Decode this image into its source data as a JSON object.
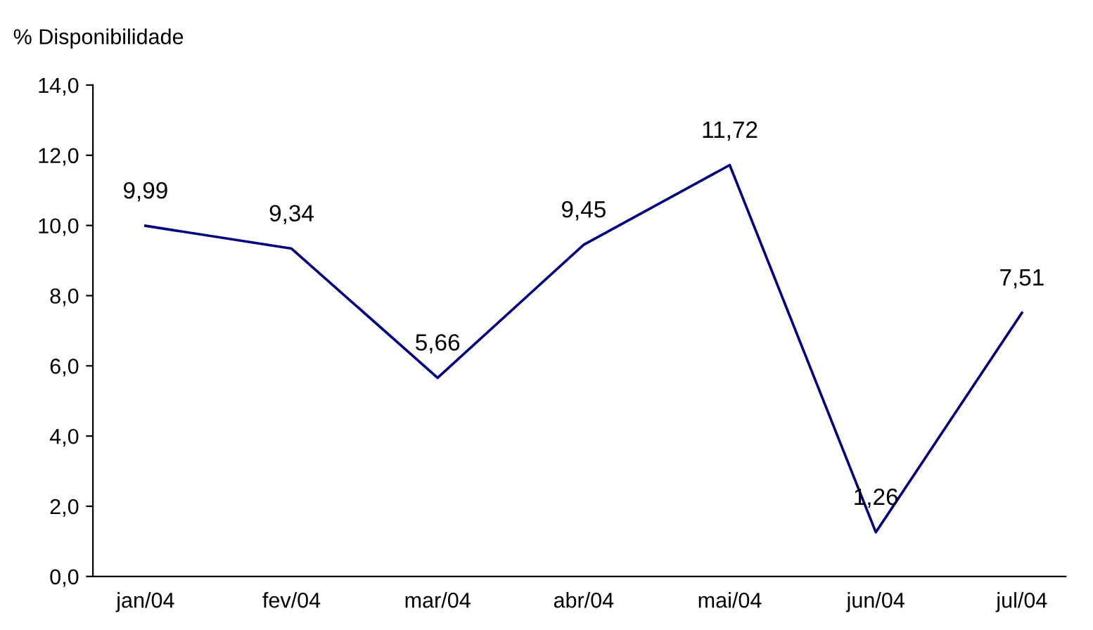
{
  "chart_data": {
    "type": "line",
    "ylabel": "% Disponibilidade",
    "categories": [
      "jan/04",
      "fev/04",
      "mar/04",
      "abr/04",
      "mai/04",
      "jun/04",
      "jul/04"
    ],
    "series": [
      {
        "color": "#000080",
        "values": [
          9.99,
          9.34,
          5.66,
          9.45,
          11.72,
          1.26,
          7.51
        ],
        "value_labels": [
          "9,99",
          "9,34",
          "5,66",
          "9,45",
          "11,72",
          "1,26",
          "7,51"
        ]
      }
    ],
    "ylim": [
      0,
      14
    ],
    "yticks": [
      {
        "value": 0,
        "label": "0,0"
      },
      {
        "value": 2,
        "label": "2,0"
      },
      {
        "value": 4,
        "label": "4,0"
      },
      {
        "value": 6,
        "label": "6,0"
      },
      {
        "value": 8,
        "label": "8,0"
      },
      {
        "value": 10,
        "label": "10,0"
      },
      {
        "value": 12,
        "label": "12,0"
      },
      {
        "value": 14,
        "label": "14,0"
      }
    ],
    "grid": false,
    "legend": false,
    "marker": "none",
    "line_style": "solid"
  }
}
